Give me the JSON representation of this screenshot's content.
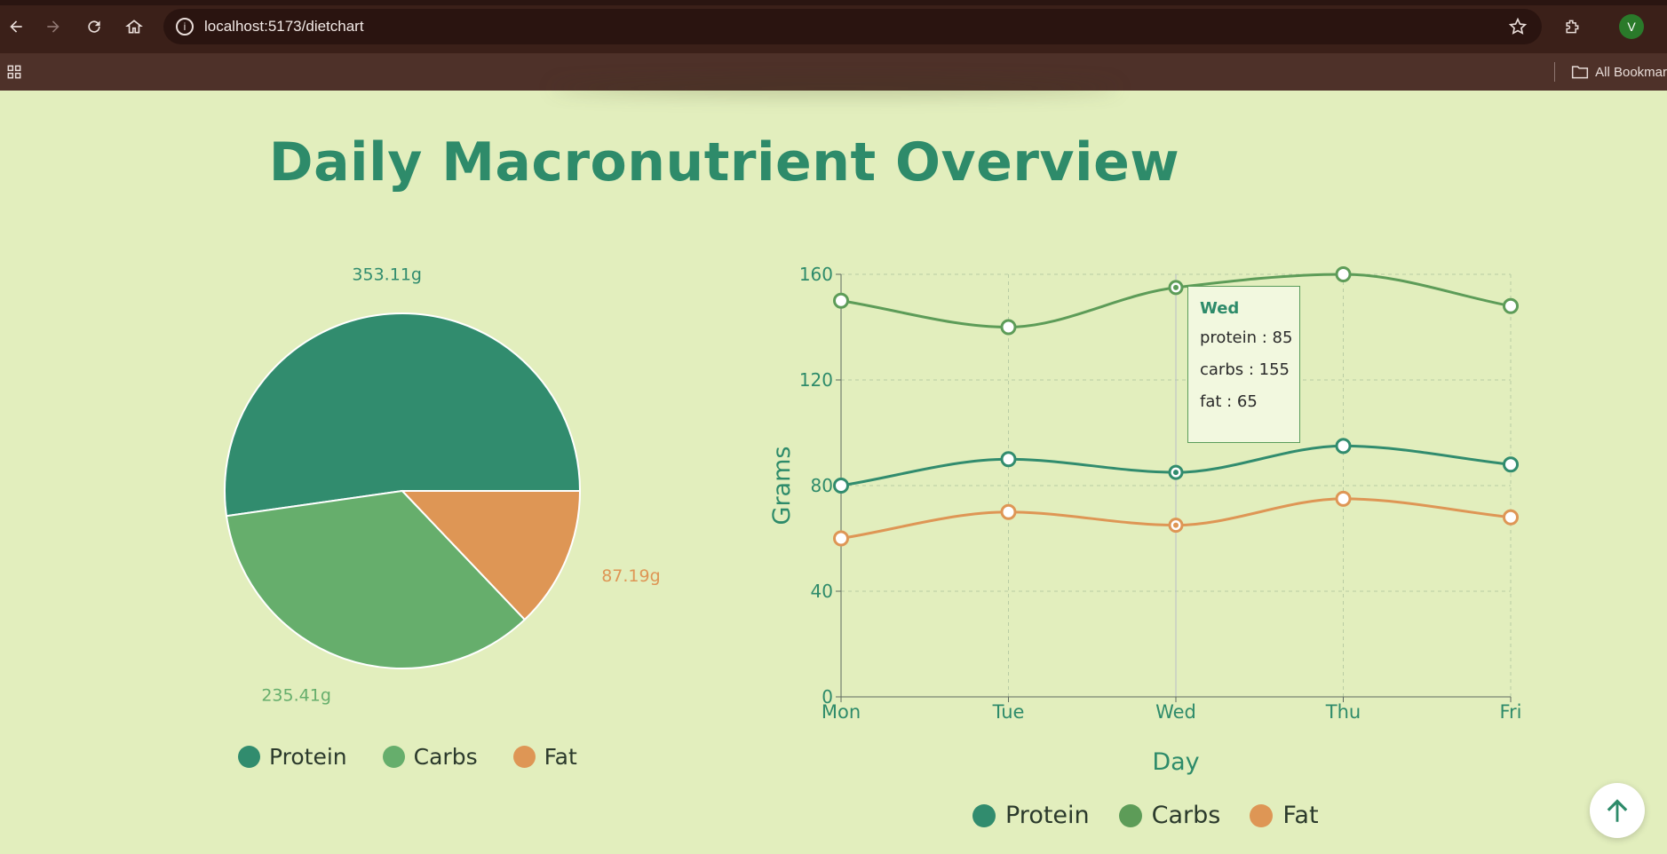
{
  "browser": {
    "url": "localhost:5173/dietchart",
    "bookmarks_label": "All Bookmar",
    "profile_initial": "V"
  },
  "page": {
    "title": "Daily Macronutrient Overview"
  },
  "colors": {
    "protein": "#318c6e",
    "carbs": "#66ae6c",
    "fat": "#de9655",
    "line_carbs": "#5d9c58",
    "accent": "#2e8b6a"
  },
  "chart_data": [
    {
      "type": "pie",
      "slices": [
        {
          "name": "Protein",
          "value": 353.11,
          "label": "353.11g"
        },
        {
          "name": "Carbs",
          "value": 235.41,
          "label": "235.41g"
        },
        {
          "name": "Fat",
          "value": 87.19,
          "label": "87.19g"
        }
      ],
      "legend": [
        "Protein",
        "Carbs",
        "Fat"
      ],
      "legend_position": "bottom"
    },
    {
      "type": "line",
      "categories": [
        "Mon",
        "Tue",
        "Wed",
        "Thu",
        "Fri"
      ],
      "series": [
        {
          "name": "Protein",
          "values": [
            80,
            90,
            85,
            95,
            88
          ]
        },
        {
          "name": "Carbs",
          "values": [
            150,
            140,
            155,
            160,
            148
          ]
        },
        {
          "name": "Fat",
          "values": [
            60,
            70,
            65,
            75,
            68
          ]
        }
      ],
      "xlabel": "Day",
      "ylabel": "Grams",
      "ylim": [
        0,
        160
      ],
      "yticks": [
        0,
        40,
        80,
        120,
        160
      ],
      "grid": true,
      "legend_position": "bottom",
      "tooltip": {
        "title": "Wed",
        "rows": [
          "protein : 85",
          "carbs : 155",
          "fat : 65"
        ]
      }
    }
  ]
}
